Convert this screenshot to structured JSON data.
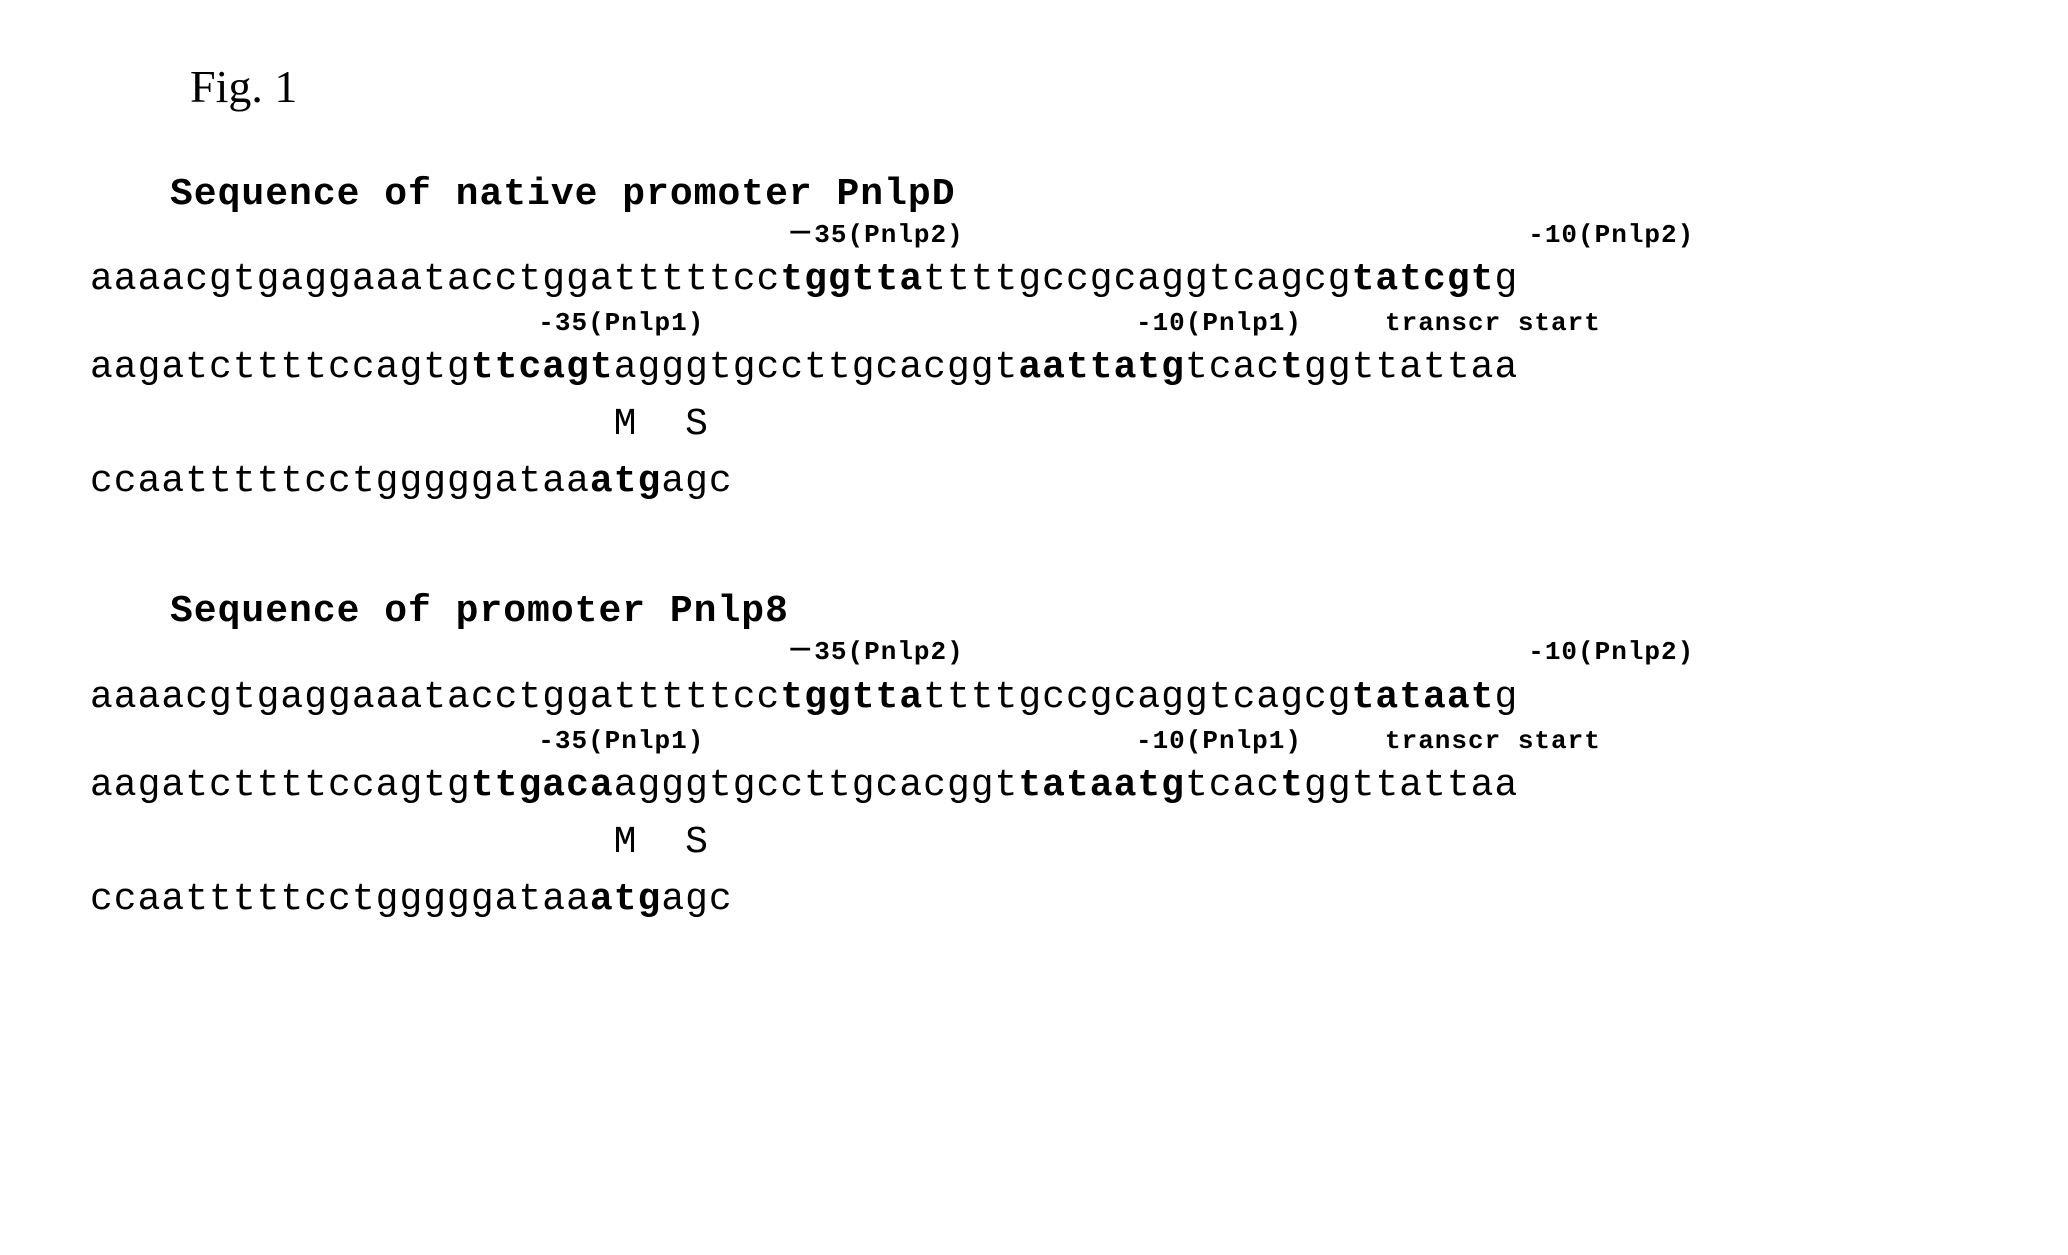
{
  "figure_label": "Fig. 1",
  "sections": [
    {
      "title": "Sequence of native promoter PnlpD",
      "label_line_1": "                                          －35(Pnlp2)                                  -10(Pnlp2)",
      "seq_line_1_a": "aaaacgtgaggaaatacctggatttttcc",
      "seq_line_1_b": "tggtta",
      "seq_line_1_c": "ttttgccgcaggtcagcg",
      "seq_line_1_d": "tatcgt",
      "seq_line_1_e": "g",
      "label_line_2": "                           -35(Pnlp1)                          -10(Pnlp1)     transcr start",
      "seq_line_2_a": "aagatcttttccagtg",
      "seq_line_2_b": "ttcagt",
      "seq_line_2_c": "agggtgccttgcacggt",
      "seq_line_2_d": "aattatg",
      "seq_line_2_e": "tcac",
      "seq_line_2_f": "t",
      "seq_line_2_g": "ggttattaa",
      "label_line_3": "                      M  S",
      "seq_line_3_a": "ccaatttttcctgggggataa",
      "seq_line_3_b": "atg",
      "seq_line_3_c": "agc"
    },
    {
      "title": "Sequence of promoter Pnlp8",
      "label_line_1": "                                          －35(Pnlp2)                                  -10(Pnlp2)",
      "seq_line_1_a": "aaaacgtgaggaaatacctggatttttcc",
      "seq_line_1_b": "tggtta",
      "seq_line_1_c": "ttttgccgcaggtcagcg",
      "seq_line_1_d": "tataat",
      "seq_line_1_e": "g",
      "label_line_2": "                           -35(Pnlp1)                          -10(Pnlp1)     transcr start",
      "seq_line_2_a": "aagatcttttccagtg",
      "seq_line_2_b": "ttgaca",
      "seq_line_2_c": "agggtgccttgcacggt",
      "seq_line_2_d": "tataatg",
      "seq_line_2_e": "tcac",
      "seq_line_2_f": "t",
      "seq_line_2_g": "ggttattaa",
      "label_line_3": "                      M  S",
      "seq_line_3_a": "ccaatttttcctgggggataa",
      "seq_line_3_b": "atg",
      "seq_line_3_c": "agc"
    }
  ]
}
